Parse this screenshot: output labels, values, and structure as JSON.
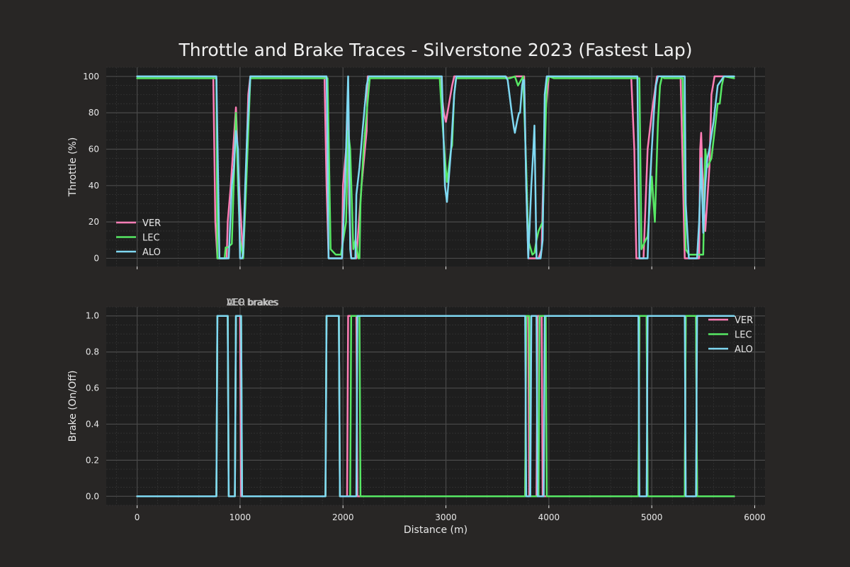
{
  "chart_data": {
    "type": "line",
    "title": "Throttle and Brake Traces - Silverstone 2023 (Fastest Lap)",
    "colors": {
      "figure_bg": "#282625",
      "axes_bg": "#1e1e1e",
      "grid_major": "#4a4a4a",
      "grid_minor": "#333333",
      "text": "#e8e8e8",
      "VER": "#ff7eb6",
      "LEC": "#57e864",
      "ALO": "#7fd8f2"
    },
    "grid": "on (major and minor)",
    "xlabel": "Distance (m)",
    "xlim": [
      -300,
      6100
    ],
    "xticks": [
      0,
      1000,
      2000,
      3000,
      4000,
      5000,
      6000
    ],
    "panels": [
      {
        "id": "throttle",
        "ylabel": "Throttle (%)",
        "ylim": [
          -4.5,
          105
        ],
        "yticks": [
          0,
          20,
          40,
          60,
          80,
          100
        ],
        "legend_position": "lower-left",
        "series": [
          {
            "name": "VER",
            "x": [
              0,
              700,
              740,
              760,
              780,
              830,
              870,
              880,
              910,
              960,
              990,
              1030,
              1060,
              1080,
              1100,
              1110,
              1150,
              1820,
              1840,
              1860,
              1900,
              1990,
              2000,
              2030,
              2050,
              2060,
              2080,
              2130,
              2180,
              2230,
              2240,
              2500,
              2940,
              2980,
              3000,
              3060,
              3080,
              3100,
              3200,
              3580,
              3600,
              3680,
              3740,
              3760,
              3780,
              3800,
              3830,
              3860,
              3900,
              3930,
              3940,
              3960,
              4000,
              4050,
              4800,
              4830,
              4850,
              4880,
              4900,
              4920,
              4960,
              5000,
              5050,
              5100,
              5280,
              5300,
              5320,
              5340,
              5380,
              5460,
              5470,
              5480,
              5490,
              5520,
              5560,
              5580,
              5610,
              5650,
              5800
            ],
            "y": [
              100,
              100,
              100,
              20,
              0,
              0,
              0,
              20,
              40,
              83,
              40,
              0,
              50,
              90,
              100,
              100,
              100,
              100,
              40,
              0,
              0,
              0,
              40,
              60,
              82,
              30,
              0,
              0,
              40,
              70,
              100,
              100,
              100,
              80,
              75,
              95,
              100,
              100,
              100,
              100,
              99,
              100,
              100,
              100,
              40,
              0,
              0,
              0,
              0,
              5,
              30,
              75,
              100,
              100,
              100,
              60,
              0,
              0,
              0,
              0,
              60,
              80,
              100,
              100,
              100,
              50,
              0,
              0,
              0,
              0,
              60,
              69,
              50,
              15,
              50,
              90,
              100,
              100,
              100
            ]
          },
          {
            "name": "LEC",
            "x": [
              0,
              500,
              750,
              770,
              780,
              820,
              850,
              860,
              880,
              920,
              960,
              980,
              1000,
              1030,
              1060,
              1080,
              1100,
              1130,
              1150,
              1850,
              1880,
              1930,
              1980,
              2030,
              2050,
              2070,
              2100,
              2120,
              2150,
              2160,
              2170,
              2200,
              2230,
              2260,
              2270,
              2600,
              2940,
              2960,
              2990,
              3010,
              3050,
              3060,
              3080,
              3100,
              3550,
              3620,
              3670,
              3700,
              3750,
              3780,
              3800,
              3840,
              3860,
              3880,
              3900,
              3940,
              3980,
              4000,
              4050,
              4880,
              4900,
              4940,
              4960,
              4970,
              5000,
              5030,
              5060,
              5080,
              5100,
              5120,
              5300,
              5330,
              5360,
              5400,
              5500,
              5520,
              5540,
              5580,
              5620,
              5640,
              5660,
              5680,
              5700,
              5800
            ],
            "y": [
              99,
              99,
              99,
              99,
              0,
              0,
              0,
              6,
              6,
              8,
              80,
              40,
              10,
              0,
              40,
              70,
              99,
              99,
              99,
              99,
              5,
              2,
              2,
              20,
              70,
              60,
              5,
              10,
              0,
              0,
              30,
              60,
              80,
              99,
              99,
              99,
              99,
              80,
              55,
              42,
              60,
              62,
              90,
              99,
              99,
              99,
              100,
              95,
              100,
              50,
              10,
              2,
              3,
              10,
              15,
              20,
              95,
              100,
              99,
              99,
              5,
              10,
              12,
              20,
              45,
              20,
              75,
              95,
              100,
              99,
              99,
              5,
              2,
              2,
              2,
              60,
              50,
              55,
              75,
              85,
              85,
              95,
              100,
              99
            ]
          },
          {
            "name": "ALO",
            "x": [
              0,
              770,
              800,
              890,
              920,
              940,
              960,
              980,
              1000,
              1020,
              1030,
              1050,
              1070,
              1100,
              1130,
              1150,
              1840,
              1850,
              1860,
              1940,
              1960,
              1990,
              2020,
              2030,
              2040,
              2050,
              2060,
              2070,
              2080,
              2090,
              2100,
              2120,
              2130,
              2160,
              2190,
              2230,
              2250,
              2270,
              2960,
              2990,
              3010,
              3050,
              3080,
              3100,
              3580,
              3600,
              3640,
              3660,
              3670,
              3690,
              3710,
              3720,
              3740,
              3750,
              3760,
              3780,
              3800,
              3830,
              3850,
              3860,
              3880,
              3900,
              3920,
              3940,
              3960,
              3980,
              4000,
              4850,
              4860,
              4880,
              4930,
              4950,
              4960,
              4980,
              5000,
              5020,
              5040,
              5060,
              5320,
              5330,
              5360,
              5400,
              5440,
              5460,
              5480,
              5500,
              5520,
              5540,
              5560,
              5600,
              5640,
              5700,
              5800
            ],
            "y": [
              100,
              100,
              0,
              0,
              40,
              50,
              70,
              60,
              0,
              0,
              3,
              40,
              70,
              100,
              100,
              100,
              100,
              60,
              0,
              0,
              0,
              0,
              40,
              60,
              80,
              100,
              60,
              5,
              0,
              0,
              0,
              0,
              35,
              50,
              70,
              95,
              100,
              100,
              100,
              40,
              31,
              60,
              90,
              100,
              100,
              98,
              80,
              72,
              69,
              75,
              80,
              80,
              95,
              98,
              98,
              40,
              0,
              40,
              60,
              73,
              0,
              0,
              0,
              10,
              90,
              100,
              100,
              100,
              100,
              0,
              0,
              0,
              0,
              40,
              60,
              80,
              95,
              100,
              100,
              30,
              0,
              0,
              0,
              20,
              55,
              14,
              40,
              55,
              60,
              75,
              95,
              100,
              100
            ]
          }
        ]
      },
      {
        "id": "brake",
        "ylabel": "Brake (On/Off)",
        "ylim": [
          -0.05,
          1.05
        ],
        "yticks": [
          0.0,
          0.2,
          0.4,
          0.6,
          0.8,
          1.0
        ],
        "legend_position": "upper-right",
        "annotations": [
          "VER brakes",
          "LEC brakes",
          "ALO brakes"
        ],
        "series": [
          {
            "name": "VER",
            "x": [
              0,
              770,
              780,
              880,
              890,
              950,
              960,
              1000,
              1010,
              1830,
              1840,
              1960,
              1970,
              2040,
              2050,
              2130,
              2140,
              3770,
              3780,
              3800,
              3810,
              3880,
              3890,
              3930,
              3940,
              4870,
              4880,
              4950,
              4960,
              5320,
              5330,
              5430,
              5440,
              5800
            ],
            "y": [
              0,
              0,
              1,
              1,
              0,
              0,
              1,
              1,
              0,
              0,
              1,
              1,
              0,
              0,
              1,
              1,
              0,
              0,
              1,
              1,
              0,
              0,
              1,
              1,
              0,
              0,
              1,
              1,
              0,
              0,
              1,
              1,
              0,
              0
            ]
          },
          {
            "name": "LEC",
            "x": [
              0,
              770,
              780,
              880,
              890,
              950,
              960,
              1010,
              1020,
              1830,
              1840,
              1960,
              1970,
              2070,
              2080,
              2160,
              2170,
              3770,
              3780,
              3810,
              3820,
              3900,
              3910,
              3970,
              3980,
              4870,
              4880,
              4950,
              4960,
              5320,
              5330,
              5430,
              5440,
              5800
            ],
            "y": [
              0,
              0,
              1,
              1,
              0,
              0,
              1,
              1,
              0,
              0,
              1,
              1,
              0,
              0,
              1,
              1,
              0,
              0,
              1,
              1,
              0,
              0,
              1,
              1,
              0,
              0,
              1,
              1,
              0,
              0,
              1,
              1,
              0,
              0
            ]
          },
          {
            "name": "ALO",
            "x": [
              0,
              770,
              780,
              880,
              890,
              950,
              960,
              1010,
              1020,
              1830,
              1840,
              1960,
              1970,
              2130,
              2140,
              3770,
              3780,
              3820,
              3830,
              3880,
              3890,
              3950,
              3960,
              4870,
              4880,
              4950,
              4960,
              5320,
              5330,
              5430,
              5440,
              5800
            ],
            "y": [
              0,
              0,
              1,
              1,
              0,
              0,
              1,
              1,
              0,
              0,
              1,
              1,
              0,
              0,
              1,
              1,
              0,
              0,
              1,
              1,
              0,
              0,
              1,
              1,
              0,
              0,
              1,
              1,
              0,
              0,
              1,
              1
            ]
          }
        ]
      }
    ]
  }
}
